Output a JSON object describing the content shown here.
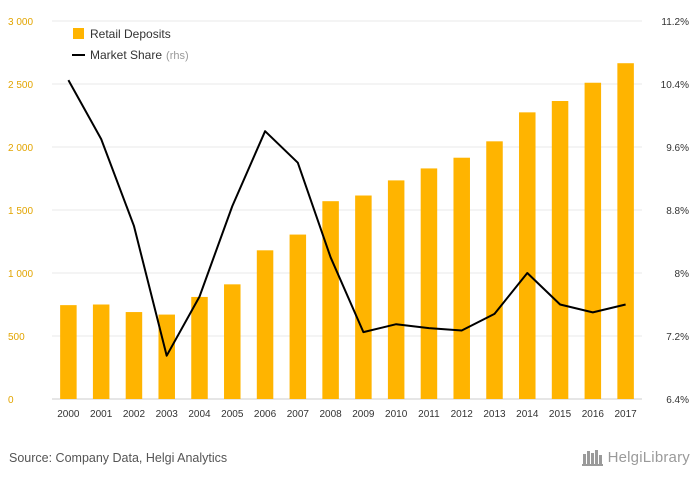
{
  "chart_data": {
    "type": "bar",
    "categories": [
      "2000",
      "2001",
      "2002",
      "2003",
      "2004",
      "2005",
      "2006",
      "2007",
      "2008",
      "2009",
      "2010",
      "2011",
      "2012",
      "2013",
      "2014",
      "2015",
      "2016",
      "2017"
    ],
    "series": [
      {
        "name": "Retail Deposits",
        "type": "bar",
        "axis": "left",
        "color": "#ffb400",
        "values": [
          745,
          750,
          690,
          670,
          810,
          910,
          1180,
          1305,
          1570,
          1615,
          1735,
          1830,
          1915,
          2045,
          2275,
          2365,
          2510,
          2665
        ]
      },
      {
        "name": "Market Share",
        "note": "(rhs)",
        "type": "line",
        "axis": "right",
        "color": "#000000",
        "values": [
          10.45,
          9.7,
          8.6,
          6.95,
          7.7,
          8.85,
          9.8,
          9.4,
          8.2,
          7.25,
          7.35,
          7.3,
          7.27,
          7.48,
          8.0,
          7.6,
          7.5,
          7.6
        ]
      }
    ],
    "y_left": {
      "lim": [
        0,
        3000
      ],
      "ticks": [
        0,
        500,
        1000,
        1500,
        2000,
        2500,
        3000
      ],
      "tick_labels": [
        "0",
        "500",
        "1 000",
        "1 500",
        "2 000",
        "2 500",
        "3 000"
      ]
    },
    "y_right": {
      "lim": [
        6.4,
        11.2
      ],
      "ticks": [
        6.4,
        7.2,
        8.0,
        8.8,
        9.6,
        10.4,
        11.2
      ],
      "tick_labels": [
        "6.4%",
        "7.2%",
        "8%",
        "8.8%",
        "9.6%",
        "10.4%",
        "11.2%"
      ]
    },
    "grid": true,
    "legend_position": "top-left",
    "title": "",
    "xlabel": "",
    "ylabel": ""
  },
  "footer": {
    "source": "Source: Company Data, Helgi Analytics",
    "logo_text": "HelgiLibrary"
  }
}
